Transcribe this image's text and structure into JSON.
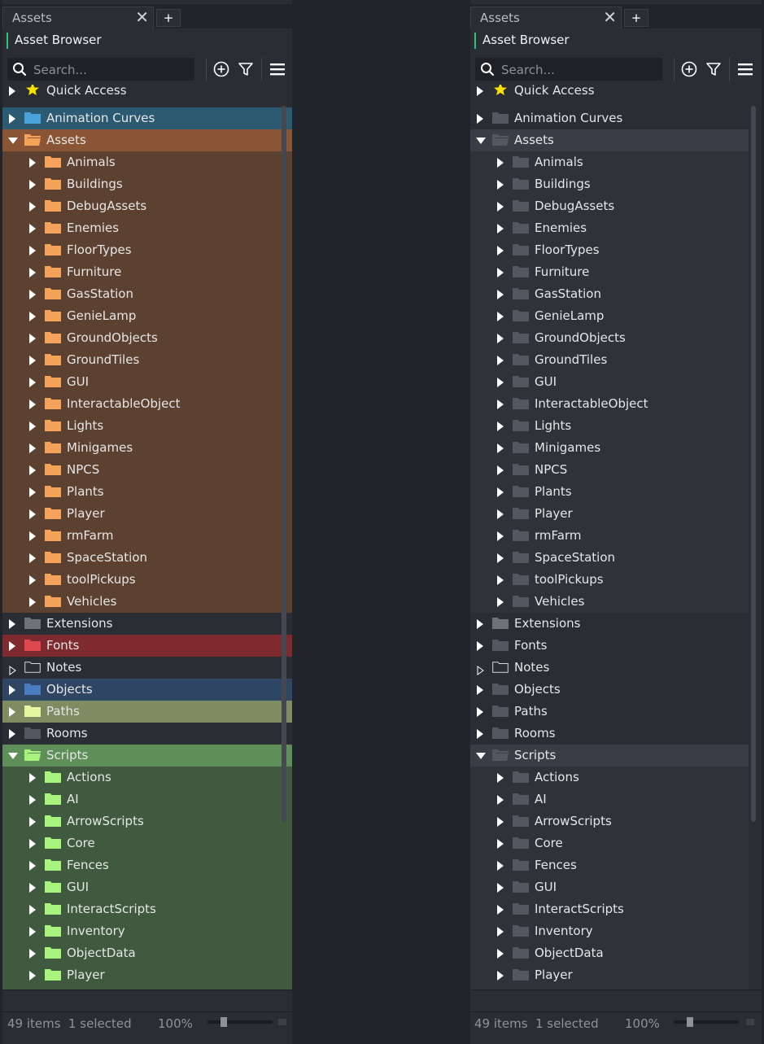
{
  "tab": {
    "label": "Assets",
    "add_label": "+"
  },
  "window_title": "Asset Browser",
  "search": {
    "placeholder": "Search..."
  },
  "status": {
    "items": "49 items",
    "selected": "1 selected",
    "zoom": "100%"
  },
  "icons": {
    "search": "search-icon",
    "add": "add-circle-icon",
    "filter": "filter-icon",
    "menu": "hamburger-menu-icon",
    "close": "close-icon",
    "favorite": "star-icon"
  },
  "colors": {
    "accent": "#2ec27e",
    "animation_curves_row": "#2c5a73",
    "animation_curves_folder": "#4aa3d8",
    "assets_header_row": "#8a5534",
    "assets_child_row": "#5c4130",
    "assets_folder": "#f5a25a",
    "extensions_folder": "#6f7177",
    "fonts_row": "#7f2a2e",
    "fonts_folder": "#e04850",
    "objects_row": "#2f4564",
    "objects_folder": "#4a7bc0",
    "paths_row": "#7e8c62",
    "paths_folder": "#e6f5a0",
    "scripts_header_row": "#5f8f58",
    "scripts_child_row": "#3f5a3e",
    "scripts_folder": "#a8f27e",
    "neutral_folder": "#545760",
    "neutral_header_row": "#3a3d45",
    "neutral_child_row": "#2f3239",
    "star": "#f3e200"
  },
  "tree": {
    "quick_access": "Quick Access",
    "animation_curves": "Animation Curves",
    "assets": "Assets",
    "assets_children": [
      "Animals",
      "Buildings",
      "DebugAssets",
      "Enemies",
      "FloorTypes",
      "Furniture",
      "GasStation",
      "GenieLamp",
      "GroundObjects",
      "GroundTiles",
      "GUI",
      "InteractableObject",
      "Lights",
      "Minigames",
      "NPCS",
      "Plants",
      "Player",
      "rmFarm",
      "SpaceStation",
      "toolPickups",
      "Vehicles"
    ],
    "extensions": "Extensions",
    "fonts": "Fonts",
    "notes": "Notes",
    "objects": "Objects",
    "paths": "Paths",
    "rooms": "Rooms",
    "scripts": "Scripts",
    "scripts_children": [
      "Actions",
      "AI",
      "ArrowScripts",
      "Core",
      "Fences",
      "GUI",
      "InteractScripts",
      "Inventory",
      "ObjectData",
      "Player"
    ]
  }
}
